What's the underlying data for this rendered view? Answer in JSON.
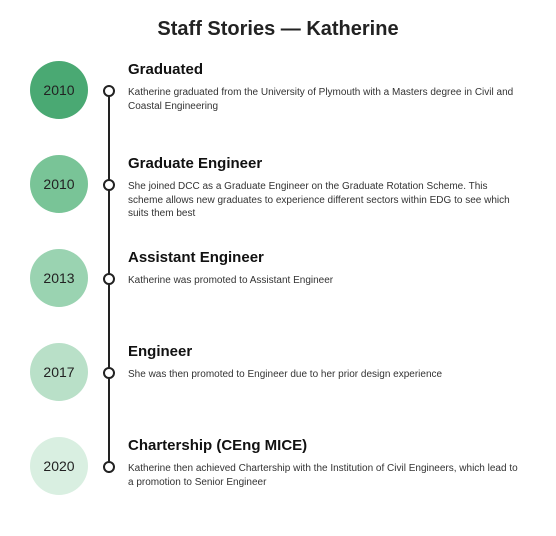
{
  "title": "Staff Stories — Katherine",
  "timeline": {
    "line_color": "#222222",
    "dot_border": "#222222",
    "dot_fill": "#ffffff",
    "events": [
      {
        "year": "2010",
        "circle_color": "#4aa973",
        "title": "Graduated",
        "desc": "Katherine graduated from the University of Plymouth with a Masters degree in Civil and Coastal Engineering"
      },
      {
        "year": "2010",
        "circle_color": "#79c497",
        "title": "Graduate Engineer",
        "desc": "She joined DCC as a Graduate Engineer on the Graduate Rotation Scheme. This scheme allows new graduates to experience different sectors within EDG to see which suits them best"
      },
      {
        "year": "2013",
        "circle_color": "#9ad3b1",
        "title": "Assistant Engineer",
        "desc": "Katherine was promoted to Assistant Engineer"
      },
      {
        "year": "2017",
        "circle_color": "#b9e0c8",
        "title": "Engineer",
        "desc": "She was then promoted to Engineer due to her prior design experience"
      },
      {
        "year": "2020",
        "circle_color": "#d9efe1",
        "title": "Chartership (CEng MICE)",
        "desc": "Katherine then achieved Chartership with the Institution of Civil Engineers, which lead to a promotion to Senior Engineer"
      }
    ]
  },
  "style": {
    "background": "#ffffff",
    "title_fontsize": 20,
    "event_title_fontsize": 15,
    "desc_fontsize": 10,
    "circle_diameter": 58
  }
}
